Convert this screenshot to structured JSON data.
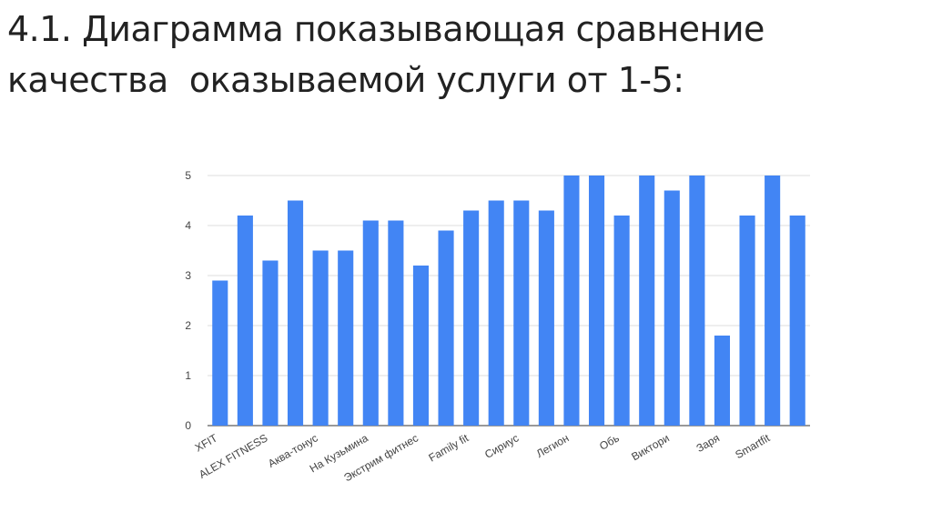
{
  "title": "4.1. Диаграмма показывающая сравнение\nкачества  оказываемой услуги от 1-5:",
  "chart_data": {
    "type": "bar",
    "categories": [
      "XFIT",
      null,
      "ALEX FITNESS",
      null,
      "Аква-тонус",
      null,
      "На Кузьмина",
      null,
      "Экстрим фитнес",
      null,
      "Family fit",
      null,
      "Сириус",
      null,
      "Легион",
      null,
      "Обь",
      null,
      "Виктори",
      null,
      "Заря",
      null,
      "Smartfit",
      null
    ],
    "values": [
      2.9,
      4.2,
      3.3,
      4.5,
      3.5,
      3.5,
      4.1,
      4.1,
      3.2,
      3.9,
      4.3,
      4.5,
      4.5,
      4.3,
      5,
      5,
      4.2,
      5,
      4.7,
      5,
      1.8,
      4.2,
      5,
      4.2
    ],
    "color": "#4285f4",
    "ylim": [
      0,
      5
    ],
    "yticks": [
      0,
      1,
      2,
      3,
      4,
      5
    ],
    "grid": true
  }
}
